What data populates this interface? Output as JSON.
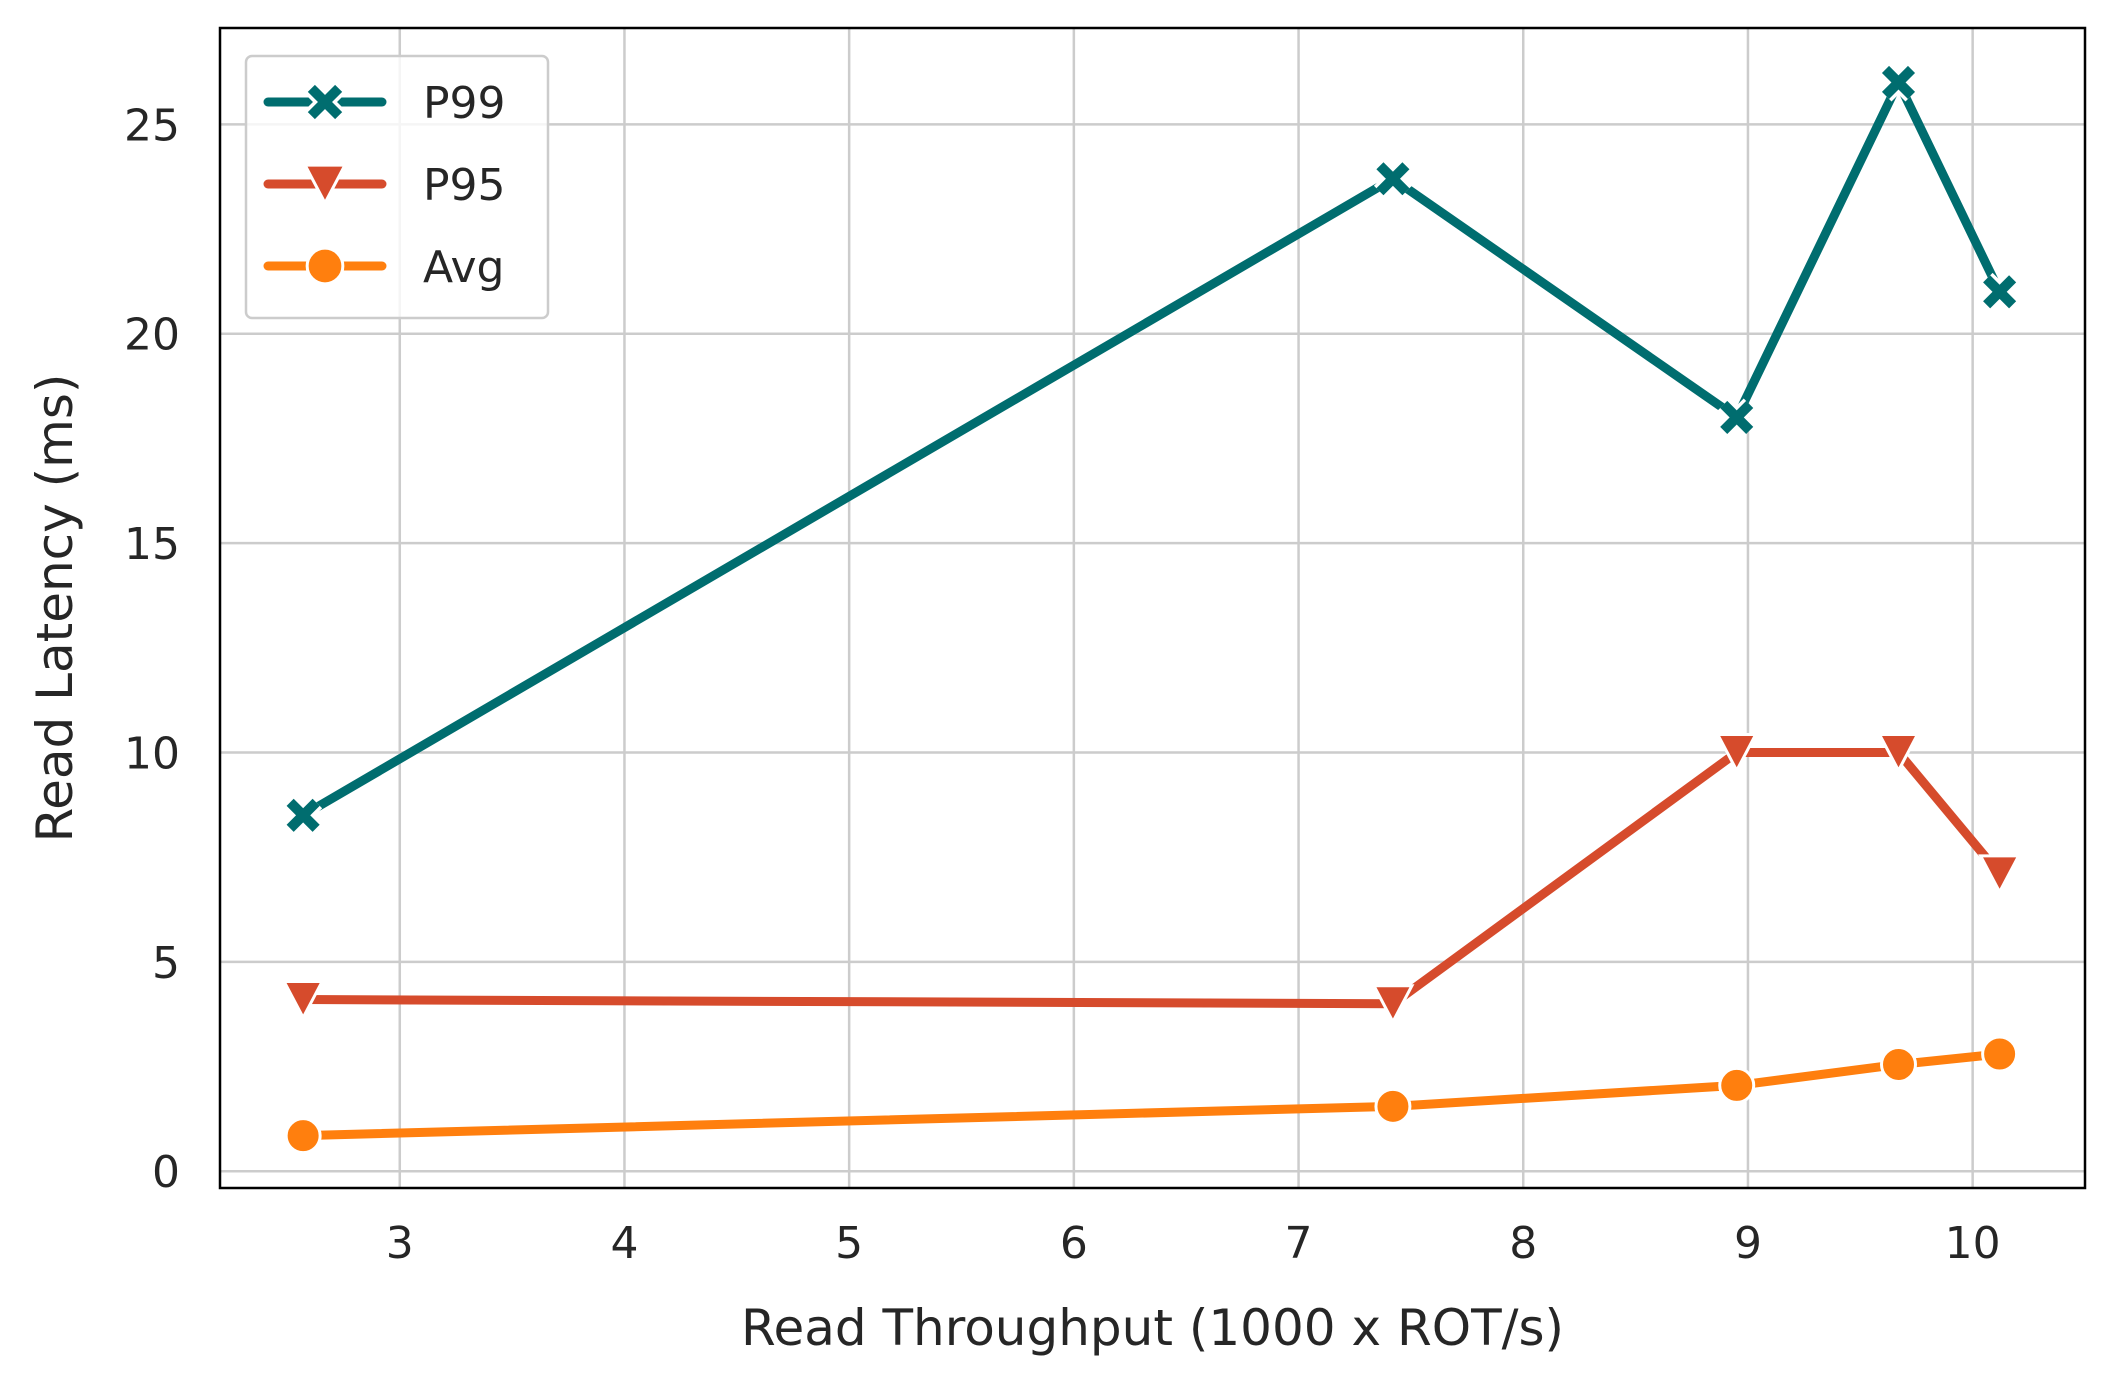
{
  "chart_data": {
    "type": "line",
    "xlabel": "Read Throughput (1000 x ROT/s)",
    "ylabel": "Read Latency (ms)",
    "xlim": [
      2.2,
      10.5
    ],
    "ylim": [
      -0.4,
      27.3
    ],
    "xticks": [
      3,
      4,
      5,
      6,
      7,
      8,
      9,
      10
    ],
    "yticks": [
      0,
      5,
      10,
      15,
      20,
      25
    ],
    "grid": true,
    "legend_position": "top-left",
    "x": [
      2.57,
      7.42,
      8.95,
      9.67,
      10.12
    ],
    "series": [
      {
        "name": "P99",
        "marker": "x",
        "color": "#006d6f",
        "values": [
          8.5,
          23.7,
          18.0,
          26.0,
          21.0
        ]
      },
      {
        "name": "P95",
        "marker": "triangle-down",
        "color": "#d64b2c",
        "values": [
          4.1,
          4.0,
          10.0,
          10.0,
          7.1
        ]
      },
      {
        "name": "Avg",
        "marker": "circle",
        "color": "#ff7f0e",
        "values": [
          0.85,
          1.55,
          2.05,
          2.55,
          2.8
        ]
      }
    ]
  }
}
